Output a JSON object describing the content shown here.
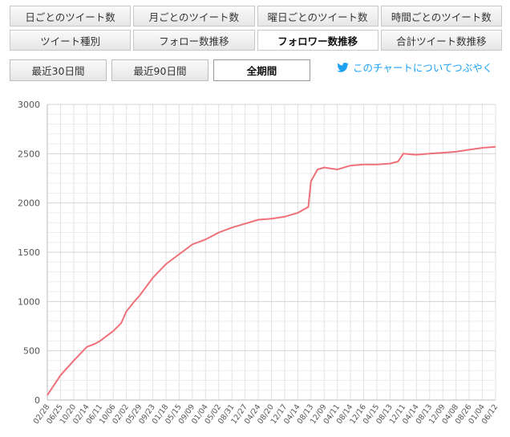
{
  "tabs": {
    "row1": [
      "日ごとのツイート数",
      "月ごとのツイート数",
      "曜日ごとのツイート数",
      "時間ごとのツイート数"
    ],
    "row2": [
      "ツイート種別",
      "フォロー数推移",
      "フォロワー数推移",
      "合計ツイート数推移"
    ],
    "active_row2_index": 2
  },
  "ranges": {
    "last30": "最近30日間",
    "last90": "最近90日間",
    "all": "全期間",
    "active": "all"
  },
  "tweet_link": {
    "label": "このチャートについてつぶやく",
    "icon": "twitter-bird-icon",
    "color": "#1da1f2"
  },
  "chart_data": {
    "type": "line",
    "line_color": "#f0707a",
    "grid": true,
    "ylim": [
      0,
      3000
    ],
    "yticks": [
      0,
      500,
      1000,
      1500,
      2000,
      2500,
      3000
    ],
    "xlabels": [
      "02/28",
      "06/25",
      "10/20",
      "02/14",
      "06/11",
      "10/06",
      "02/02",
      "05/29",
      "09/23",
      "01/18",
      "05/15",
      "09/09",
      "01/04",
      "05/02",
      "08/31",
      "12/27",
      "04/24",
      "08/20",
      "12/17",
      "04/14",
      "08/13",
      "12/09",
      "04/11",
      "08/14",
      "12/16",
      "04/15",
      "08/13",
      "12/11",
      "04/14",
      "08/13",
      "12/09",
      "04/08",
      "08/26",
      "01/04",
      "06/12"
    ],
    "series": [
      {
        "x": [
          0.0,
          1.0,
          2.0,
          3.0,
          3.6,
          4.0,
          5.0,
          5.6,
          6.0,
          6.6,
          7.0,
          8.0,
          9.0,
          10.0,
          11.0,
          12.0,
          13.0,
          14.0,
          15.0,
          16.0,
          17.0,
          18.0,
          19.0,
          19.8,
          20.0,
          20.5,
          21.0,
          22.0,
          23.0,
          24.0,
          25.0,
          26.0,
          26.6,
          27.0,
          28.0,
          29.0,
          30.0,
          31.0,
          32.0,
          33.0,
          34.0
        ],
        "y": [
          50,
          250,
          400,
          540,
          570,
          600,
          700,
          780,
          900,
          1000,
          1060,
          1240,
          1380,
          1480,
          1580,
          1630,
          1700,
          1750,
          1790,
          1830,
          1840,
          1860,
          1900,
          1960,
          2220,
          2340,
          2360,
          2340,
          2380,
          2390,
          2390,
          2400,
          2420,
          2500,
          2490,
          2500,
          2510,
          2520,
          2540,
          2560,
          2570
        ]
      }
    ]
  }
}
